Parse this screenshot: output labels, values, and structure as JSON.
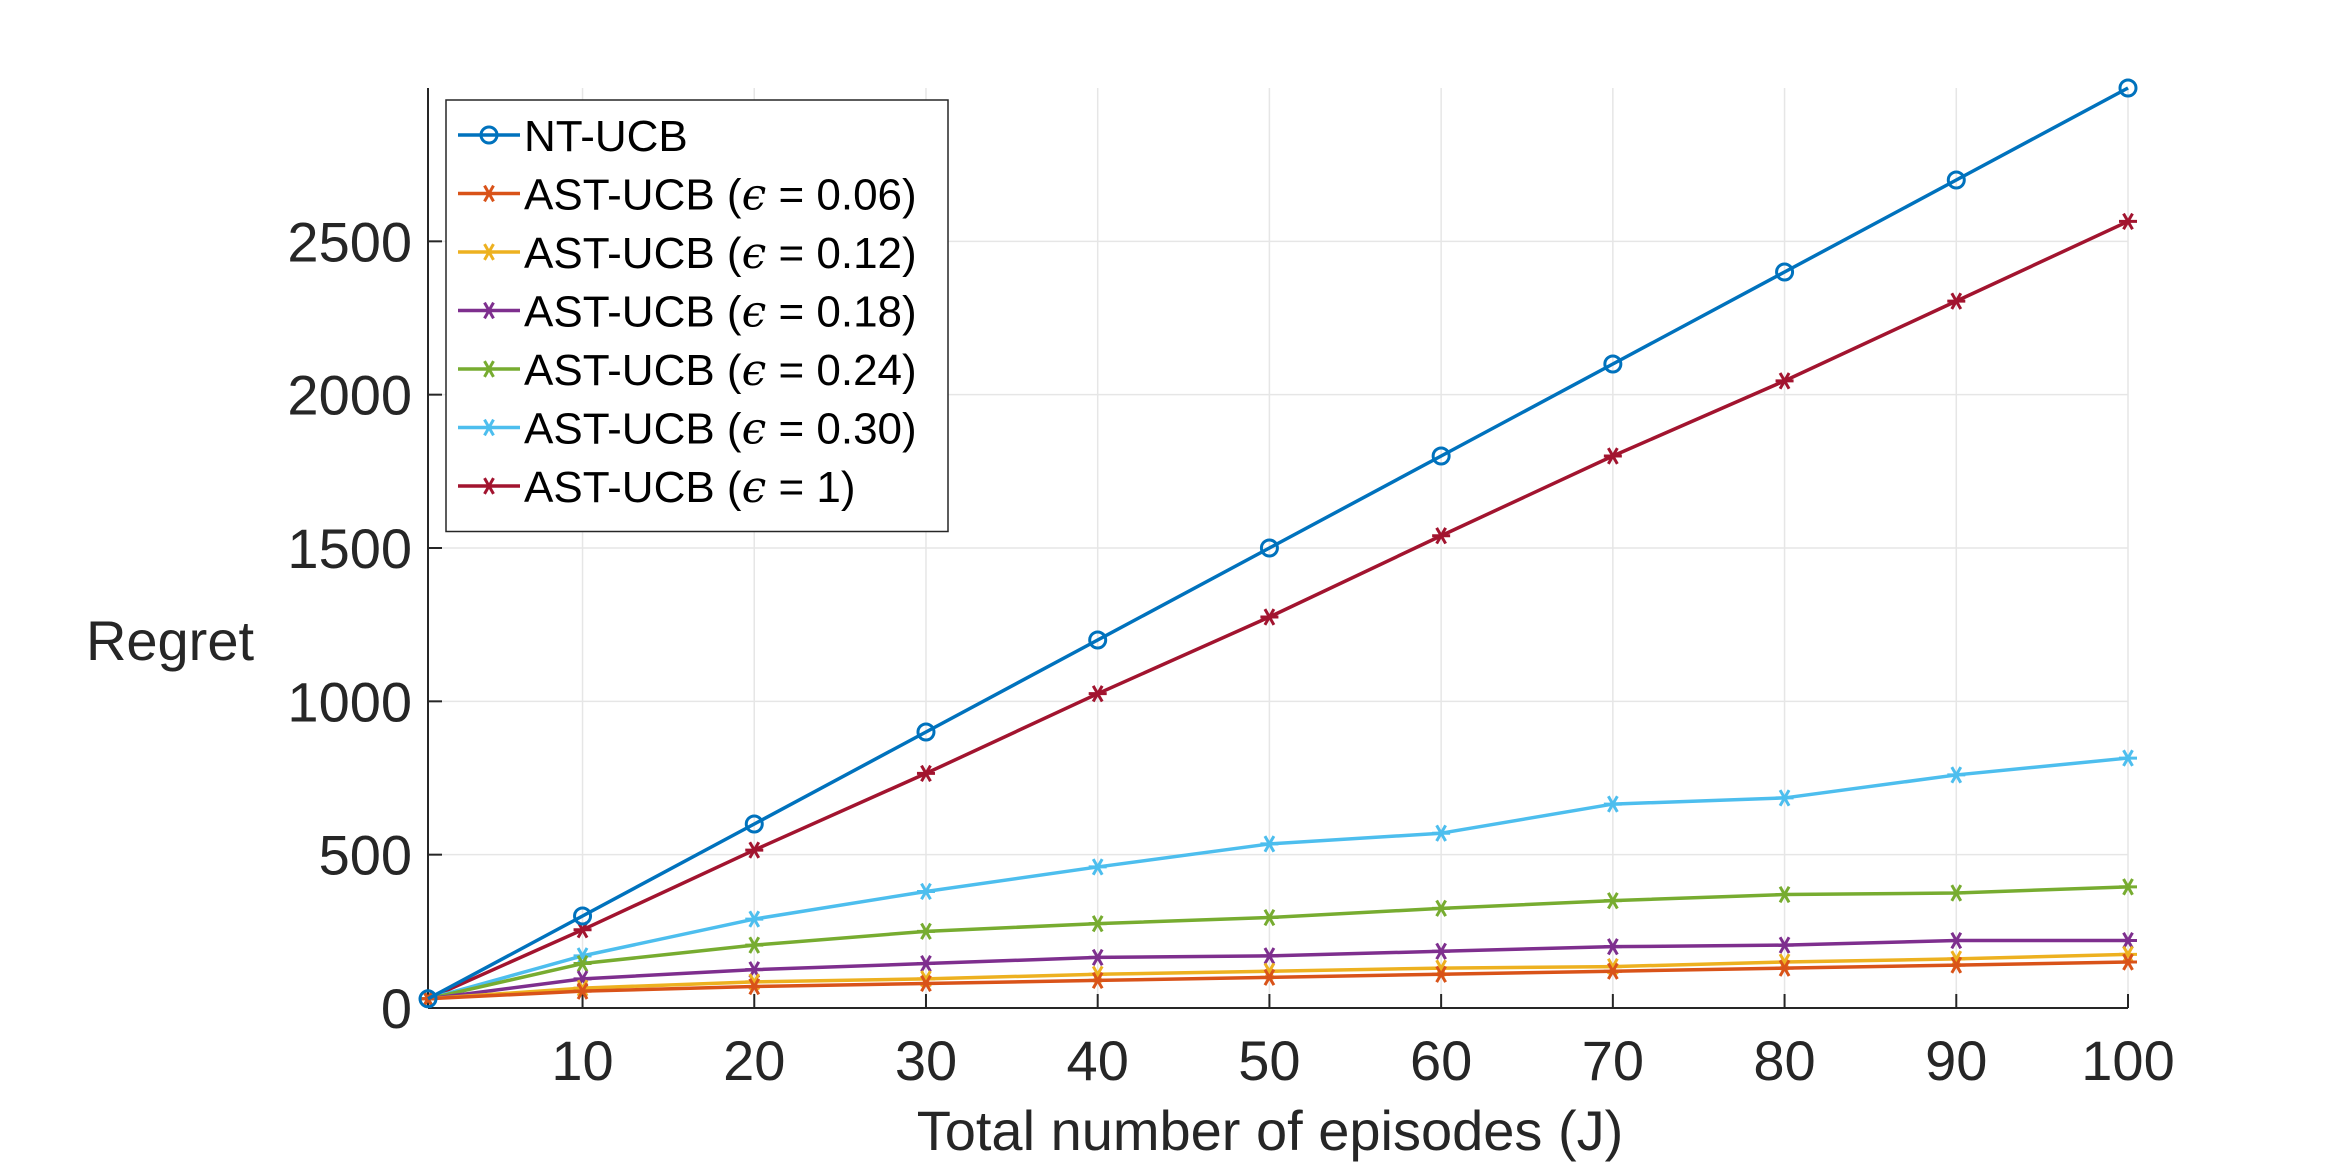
{
  "chart_data": {
    "type": "line",
    "title": "",
    "xlabel": "Total number of episodes (J)",
    "ylabel": "Regret",
    "xlim": [
      1,
      100
    ],
    "ylim": [
      0,
      3000
    ],
    "xticks": [
      10,
      20,
      30,
      40,
      50,
      60,
      70,
      80,
      90,
      100
    ],
    "yticks": [
      0,
      500,
      1000,
      1500,
      2000,
      2500
    ],
    "grid": true,
    "legend_position": "top-left",
    "x": [
      1,
      10,
      20,
      30,
      40,
      50,
      60,
      70,
      80,
      90,
      100
    ],
    "series": [
      {
        "name": "NT-UCB",
        "label_prefix": "NT-UCB",
        "eps_value": "",
        "color": "#0072BD",
        "marker": "circle",
        "values": [
          30,
          300,
          600,
          900,
          1200,
          1500,
          1800,
          2100,
          2400,
          2700,
          3000
        ]
      },
      {
        "name": "AST-UCB (ϵ = 0.06)",
        "label_prefix": "AST-UCB (",
        "eps_value": " = 0.06)",
        "color": "#D95319",
        "marker": "asterisk",
        "values": [
          30,
          55,
          70,
          80,
          90,
          100,
          110,
          120,
          130,
          140,
          150
        ]
      },
      {
        "name": "AST-UCB (ϵ = 0.12)",
        "label_prefix": "AST-UCB (",
        "eps_value": " = 0.12)",
        "color": "#EDB120",
        "marker": "asterisk",
        "values": [
          30,
          65,
          85,
          95,
          110,
          120,
          130,
          135,
          150,
          160,
          175
        ]
      },
      {
        "name": "AST-UCB (ϵ = 0.18)",
        "label_prefix": "AST-UCB (",
        "eps_value": " = 0.18)",
        "color": "#7E2F8E",
        "marker": "asterisk",
        "values": [
          30,
          95,
          125,
          145,
          165,
          170,
          185,
          200,
          205,
          220,
          220
        ]
      },
      {
        "name": "AST-UCB (ϵ = 0.24)",
        "label_prefix": "AST-UCB (",
        "eps_value": " = 0.24)",
        "color": "#77AC30",
        "marker": "asterisk",
        "values": [
          30,
          145,
          205,
          250,
          275,
          295,
          325,
          350,
          370,
          375,
          395
        ]
      },
      {
        "name": "AST-UCB (ϵ = 0.30)",
        "label_prefix": "AST-UCB (",
        "eps_value": " = 0.30)",
        "color": "#4DBEEE",
        "marker": "asterisk",
        "values": [
          30,
          170,
          290,
          380,
          460,
          535,
          570,
          665,
          685,
          760,
          815
        ]
      },
      {
        "name": "AST-UCB (ϵ = 1)",
        "label_prefix": "AST-UCB (",
        "eps_value": " = 1)",
        "color": "#A2142F",
        "marker": "asterisk",
        "values": [
          30,
          255,
          515,
          765,
          1025,
          1275,
          1540,
          1800,
          2045,
          2305,
          2565
        ]
      }
    ]
  }
}
